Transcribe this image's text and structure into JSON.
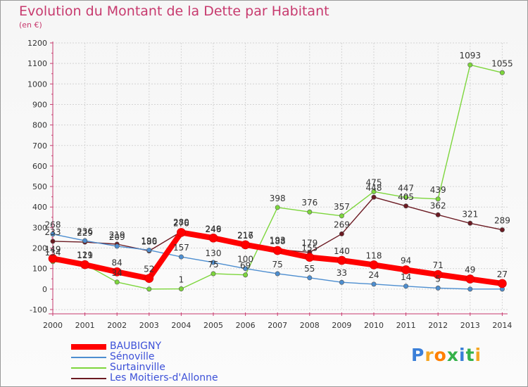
{
  "chart_data": {
    "type": "line",
    "title": "Evolution du Montant de la Dette par Habitant",
    "unit": "(en €)",
    "ylim": [
      -100,
      1200
    ],
    "yticks": [
      -100,
      0,
      100,
      200,
      300,
      400,
      500,
      600,
      700,
      800,
      900,
      1000,
      1100,
      1200
    ],
    "x": [
      "2000",
      "2001",
      "2002",
      "2003",
      "2004",
      "2005",
      "2006",
      "2007",
      "2008",
      "2009",
      "2010",
      "2011",
      "2012",
      "2013",
      "2014"
    ],
    "grid": true,
    "legend": "bottom-left",
    "series": [
      {
        "name": "Les Moitiers-d'Allonne",
        "color": "#6b1a22",
        "values": [
          233,
          229,
          219,
          186,
          280,
          246,
          217,
          193,
          179,
          269,
          448,
          405,
          362,
          321,
          289
        ]
      },
      {
        "name": "Surtainville",
        "color": "#7dd63c",
        "values": [
          134,
          121,
          34,
          0,
          1,
          75,
          69,
          398,
          376,
          357,
          475,
          447,
          439,
          1093,
          1055
        ]
      },
      {
        "name": "Sénoville",
        "color": "#4d8ed0",
        "values": [
          268,
          236,
          209,
          190,
          157,
          130,
          100,
          75,
          55,
          33,
          24,
          14,
          5,
          0,
          0
        ]
      },
      {
        "name": "BAUBIGNY",
        "color": "#ff0000",
        "values": [
          149,
          119,
          84,
          52,
          276,
          249,
          216,
          188,
          155,
          140,
          118,
          94,
          71,
          49,
          27
        ]
      }
    ],
    "data_labels": [
      [
        233,
        229,
        219,
        186,
        280,
        246,
        217,
        193,
        179,
        269,
        448,
        405,
        362,
        321,
        289
      ],
      [
        134,
        121,
        34,
        "",
        1,
        75,
        69,
        398,
        376,
        357,
        475,
        447,
        439,
        1093,
        1055
      ],
      [
        268,
        236,
        209,
        190,
        157,
        130,
        100,
        75,
        55,
        33,
        24,
        14,
        5,
        "",
        ""
      ],
      [
        149,
        119,
        84,
        52,
        276,
        249,
        216,
        188,
        155,
        140,
        118,
        94,
        71,
        49,
        27
      ]
    ]
  },
  "legend": {
    "items": [
      {
        "label": "BAUBIGNY",
        "color": "#ff0000"
      },
      {
        "label": "Sénoville",
        "color": "#4d8ed0"
      },
      {
        "label": "Surtainville",
        "color": "#7dd63c"
      },
      {
        "label": "Les Moitiers-d'Allonne",
        "color": "#6b1a22"
      }
    ]
  },
  "logo": {
    "text": "Proxiti",
    "colors": [
      "#3a7fd8",
      "#f5a623",
      "#ff7f00",
      "#36b24a",
      "#3a7fd8",
      "#36b24a",
      "#f5a623"
    ]
  }
}
